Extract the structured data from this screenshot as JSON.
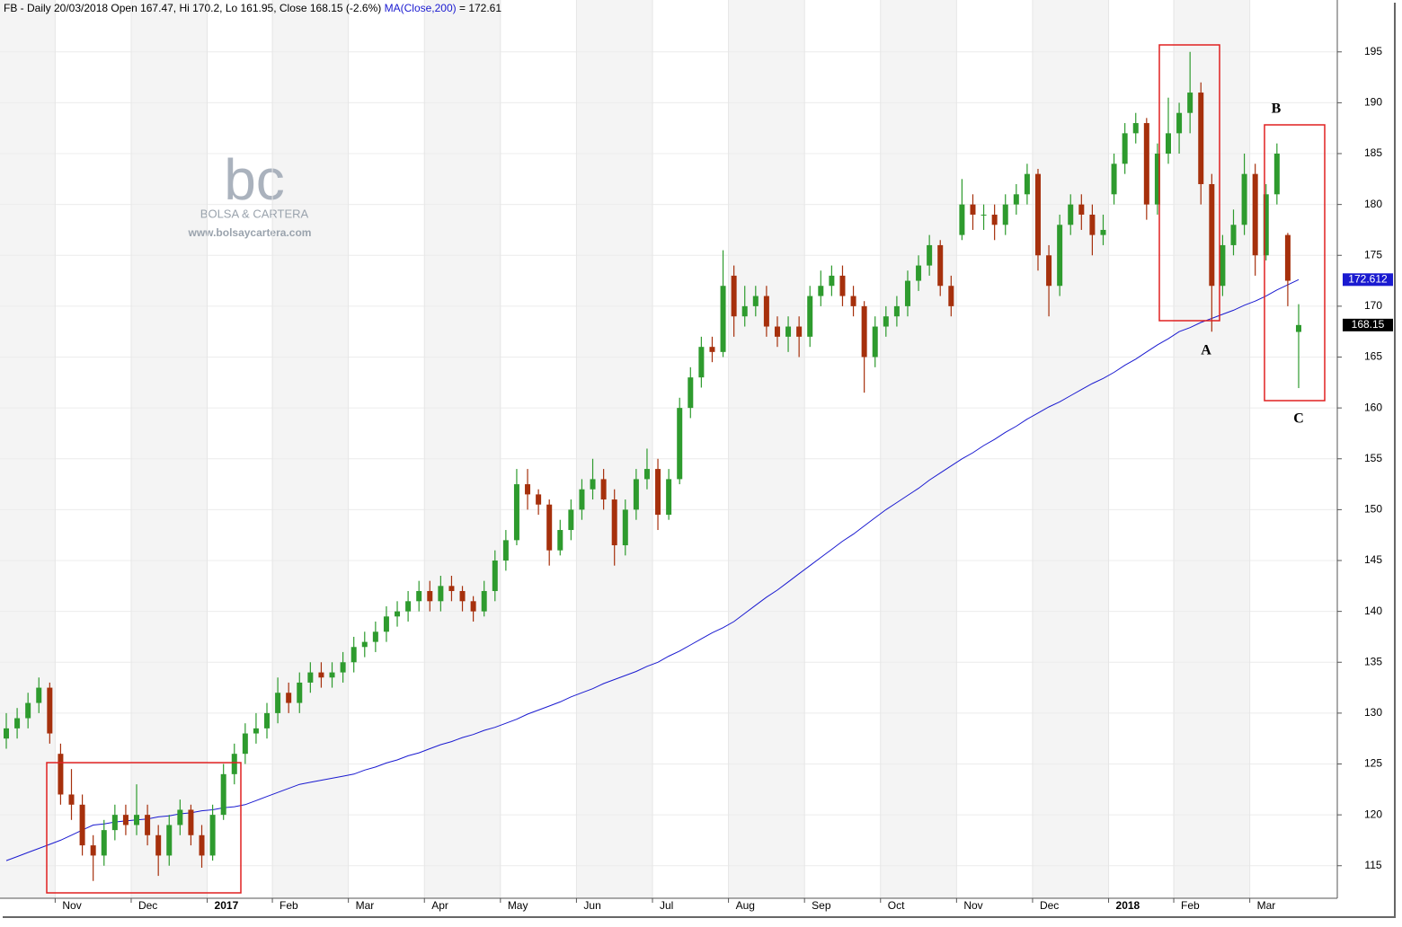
{
  "chart_data": {
    "type": "candlestick",
    "title": "FB - Daily 20/03/2018 Open 167.47, Hi 170.2, Lo 161.95, Close 168.15 (-2.6%)",
    "ma": {
      "name": "MA(Close,200)",
      "readout": "= 172.61",
      "color": "#1a1ad0",
      "values": [
        115.5,
        115.9,
        116.3,
        116.7,
        117.1,
        117.5,
        118,
        118.5,
        119,
        119.1,
        119.3,
        119.4,
        119.5,
        119.6,
        119.8,
        119.9,
        120.1,
        120.2,
        120.4,
        120.5,
        120.7,
        120.8,
        121,
        121.4,
        121.8,
        122.2,
        122.6,
        123,
        123.2,
        123.4,
        123.6,
        123.8,
        124,
        124.4,
        124.7,
        125.1,
        125.4,
        125.8,
        126.1,
        126.5,
        126.9,
        127.2,
        127.6,
        127.9,
        128.3,
        128.6,
        129,
        129.4,
        129.9,
        130.3,
        130.7,
        131.1,
        131.6,
        132,
        132.4,
        132.9,
        133.3,
        133.7,
        134.1,
        134.6,
        135,
        135.6,
        136.1,
        136.7,
        137.3,
        137.9,
        138.4,
        139,
        139.8,
        140.6,
        141.4,
        142.1,
        142.9,
        143.7,
        144.5,
        145.3,
        146.1,
        146.9,
        147.6,
        148.4,
        149.2,
        150,
        150.7,
        151.4,
        152.1,
        152.9,
        153.6,
        154.3,
        155,
        155.6,
        156.3,
        156.9,
        157.6,
        158.2,
        158.9,
        159.5,
        160.1,
        160.6,
        161.2,
        161.8,
        162.4,
        162.9,
        163.5,
        164.2,
        164.8,
        165.5,
        166.2,
        166.8,
        167.5,
        167.9,
        168.4,
        168.8,
        169.2,
        169.6,
        170.1,
        170.5,
        171,
        171.6,
        172.1,
        172.61
      ]
    },
    "categories": [
      null,
      null,
      null,
      null,
      null,
      "Nov",
      null,
      null,
      null,
      null,
      null,
      null,
      "Dec",
      null,
      null,
      null,
      null,
      null,
      null,
      "2017",
      null,
      null,
      null,
      null,
      null,
      "Feb",
      null,
      null,
      null,
      null,
      null,
      null,
      "Mar",
      null,
      null,
      null,
      null,
      null,
      null,
      "Apr",
      null,
      null,
      null,
      null,
      null,
      null,
      "May",
      null,
      null,
      null,
      null,
      null,
      null,
      "Jun",
      null,
      null,
      null,
      null,
      null,
      null,
      "Jul",
      null,
      null,
      null,
      null,
      null,
      null,
      "Aug",
      null,
      null,
      null,
      null,
      null,
      null,
      "Sep",
      null,
      null,
      null,
      null,
      null,
      null,
      "Oct",
      null,
      null,
      null,
      null,
      null,
      null,
      "Nov",
      null,
      null,
      null,
      null,
      null,
      null,
      "Dec",
      null,
      null,
      null,
      null,
      null,
      null,
      "2018",
      null,
      null,
      null,
      null,
      null,
      "Feb",
      null,
      null,
      null,
      null,
      null,
      null,
      "Mar",
      null,
      null,
      null,
      null
    ],
    "open": [
      127.5,
      128.5,
      129.5,
      131,
      132.5,
      126,
      122,
      121,
      117,
      116,
      118.5,
      120,
      119,
      120,
      118,
      116,
      119,
      120.5,
      118,
      116,
      120,
      124,
      126,
      128,
      128.5,
      130,
      132,
      131,
      133,
      134,
      133.5,
      134,
      135,
      136.5,
      137,
      138,
      139.5,
      140,
      141,
      142,
      141,
      142.5,
      142,
      141,
      140,
      142,
      145,
      147,
      152.5,
      151.5,
      150.5,
      146,
      148,
      150,
      152,
      153,
      151,
      146.5,
      150,
      153,
      154,
      149.5,
      153,
      160,
      163,
      166,
      165.5,
      173,
      169,
      170,
      171,
      168,
      167,
      168,
      167,
      171,
      172,
      173,
      171,
      170,
      165,
      168,
      169,
      170,
      172.5,
      174,
      176,
      172,
      177,
      180,
      179,
      179,
      178,
      180,
      181,
      183,
      175,
      172,
      178,
      180,
      179,
      177,
      181,
      184,
      187,
      188,
      180,
      185,
      187,
      189,
      191,
      182,
      172,
      176,
      178,
      183,
      175,
      181,
      177,
      167.47
    ],
    "high": [
      130,
      130.5,
      132,
      133.5,
      133,
      127,
      124.5,
      122,
      118,
      119.5,
      121,
      121,
      123,
      121,
      119,
      120,
      121.5,
      121,
      119,
      121,
      125,
      127,
      129,
      130,
      131,
      133.5,
      133,
      134,
      135,
      135,
      135,
      136,
      137.5,
      138,
      139,
      140.5,
      141,
      142,
      143,
      143,
      143.5,
      143.5,
      142.5,
      141.5,
      143,
      146,
      148,
      154,
      154,
      152,
      151,
      149,
      151,
      153,
      155,
      154,
      152,
      151,
      154,
      156,
      155,
      154,
      161,
      164,
      167,
      167,
      175.5,
      174,
      172,
      172,
      172,
      169,
      169,
      169,
      172,
      173.5,
      174,
      174,
      172,
      170.5,
      169,
      170,
      171,
      173.5,
      175,
      177,
      176.5,
      173,
      182.5,
      181,
      180,
      180,
      181,
      182,
      184,
      183.5,
      176,
      179,
      181,
      181,
      180,
      179,
      185,
      188,
      189,
      188.5,
      186,
      190.5,
      190,
      195,
      192,
      183,
      177,
      179.5,
      185,
      184,
      182,
      186,
      177.2,
      170.2
    ],
    "low": [
      126.5,
      127.5,
      128.5,
      130,
      127,
      121,
      119.5,
      116,
      113.5,
      115,
      117.5,
      118,
      118,
      117,
      114,
      115,
      118,
      117,
      114.8,
      115.5,
      119.5,
      123,
      125,
      127,
      127.5,
      129,
      130,
      130,
      132,
      132.5,
      132.5,
      133,
      134,
      135.5,
      136,
      137,
      138.5,
      139,
      140,
      140,
      140,
      141,
      140,
      139,
      139.5,
      141,
      144,
      146.5,
      150,
      149.5,
      144.5,
      145.5,
      147,
      149,
      151,
      150,
      144.5,
      145.5,
      149,
      152,
      148,
      149,
      152.5,
      159,
      162,
      164.5,
      165,
      167,
      168,
      169,
      167,
      166,
      165.5,
      165,
      166,
      170,
      171,
      170,
      169,
      161.5,
      164,
      167,
      168,
      169,
      171.5,
      173,
      171,
      169,
      176.5,
      177.5,
      177.5,
      176.5,
      177,
      179,
      180,
      173.5,
      169,
      171,
      177,
      177.5,
      175,
      176,
      180,
      183,
      186,
      178.5,
      179,
      184,
      185,
      187,
      180,
      167.5,
      171,
      175,
      177,
      173,
      174.5,
      180,
      170,
      161.95
    ],
    "close": [
      128.5,
      129.5,
      131,
      132.5,
      128,
      122,
      121,
      117,
      116,
      118.5,
      120,
      119,
      120,
      118,
      116,
      119,
      120.5,
      118,
      116,
      120,
      124,
      126,
      128,
      128.5,
      130,
      132,
      131,
      133,
      134,
      133.5,
      134,
      135,
      136.5,
      137,
      138,
      139.5,
      140,
      141,
      142,
      141,
      142.5,
      142,
      141,
      140,
      142,
      145,
      147,
      152.5,
      151.5,
      150.5,
      146,
      148,
      150,
      152,
      153,
      151,
      146.5,
      150,
      153,
      154,
      149.5,
      153,
      160,
      163,
      166,
      165.5,
      172,
      169,
      170,
      171,
      168,
      167,
      168,
      167,
      171,
      172,
      173,
      171,
      170,
      165,
      168,
      169,
      170,
      172.5,
      174,
      176,
      172,
      170,
      180,
      179,
      179,
      178,
      180,
      181,
      183,
      175,
      172,
      178,
      180,
      179,
      177,
      177.5,
      184,
      187,
      188,
      180,
      185,
      187,
      189,
      191,
      182,
      172,
      176,
      178,
      183,
      175,
      181,
      185,
      172.5,
      168.15
    ],
    "up_color": "#2e9b2e",
    "down_color": "#a6300c",
    "ylim": [
      111.8,
      200.1
    ],
    "yticks": [
      115,
      120,
      125,
      130,
      135,
      140,
      145,
      150,
      155,
      160,
      165,
      170,
      175,
      180,
      185,
      190,
      195
    ],
    "last_labels": [
      {
        "value": 172.612,
        "label": "172.612"
      },
      {
        "value": 168.15,
        "label": "168.15"
      }
    ],
    "annotations": [
      "A",
      "B",
      "C"
    ],
    "watermark": {
      "logo": "bc",
      "name": "BOLSA & CARTERA",
      "url": "www.bolsaycartera.com"
    }
  }
}
